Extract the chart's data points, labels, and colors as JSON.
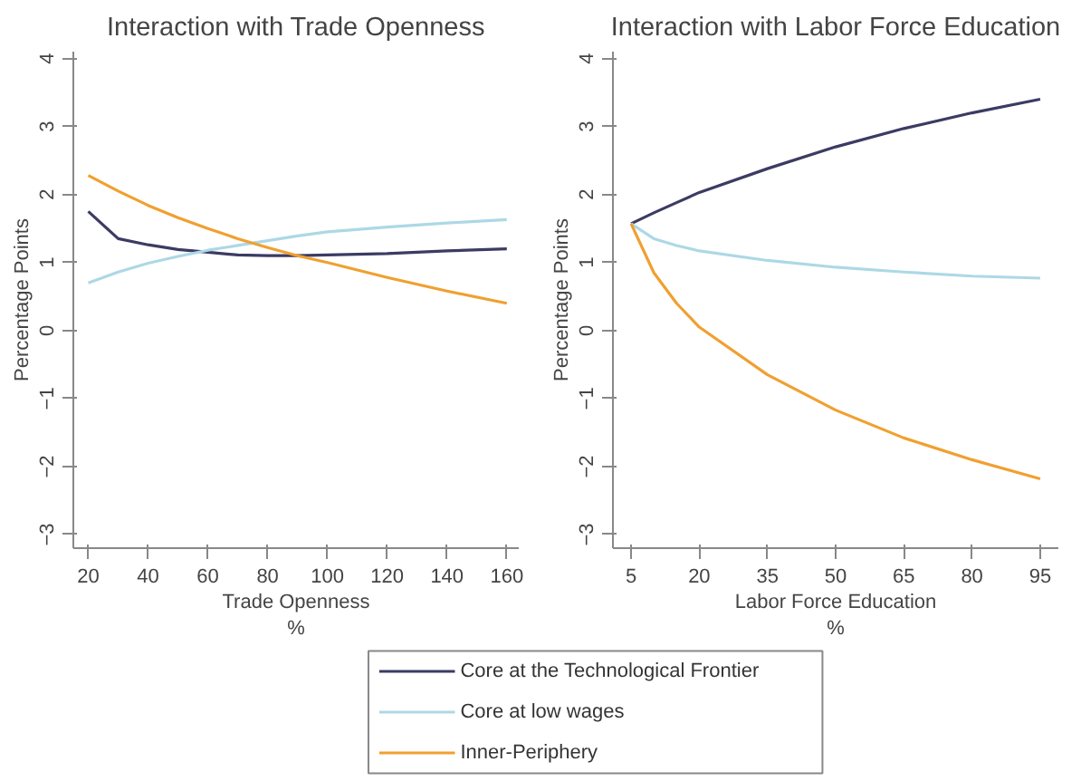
{
  "chart_data": [
    {
      "type": "line",
      "title": "Interaction with Trade Openness",
      "xlabel": "Trade Openness\n%",
      "ylabel": "Percentage Points",
      "x": [
        20,
        30,
        40,
        50,
        60,
        70,
        80,
        90,
        100,
        120,
        140,
        160
      ],
      "xlim": [
        15,
        164
      ],
      "xticks": [
        20,
        40,
        60,
        80,
        100,
        120,
        140,
        160
      ],
      "ylim": [
        -3.2,
        4.1
      ],
      "yticks": [
        -3,
        -2,
        -1,
        0,
        1,
        2,
        3,
        4
      ],
      "grid": false,
      "legend": "bottom",
      "line_style": "solid",
      "series": [
        {
          "name": "Core at the Technological Frontier",
          "color": "#3b3b63",
          "values": [
            1.75,
            1.35,
            1.26,
            1.19,
            1.15,
            1.11,
            1.1,
            1.1,
            1.11,
            1.13,
            1.17,
            1.2
          ]
        },
        {
          "name": "Core at low wages",
          "color": "#add8e6",
          "values": [
            0.7,
            0.86,
            0.99,
            1.09,
            1.18,
            1.25,
            1.32,
            1.39,
            1.45,
            1.52,
            1.58,
            1.63
          ]
        },
        {
          "name": "Inner-Periphery",
          "color": "#f0a030",
          "values": [
            2.28,
            2.05,
            1.84,
            1.66,
            1.5,
            1.35,
            1.22,
            1.1,
            1.0,
            0.78,
            0.58,
            0.4
          ]
        }
      ]
    },
    {
      "type": "line",
      "title": "Interaction with Labor Force Education",
      "xlabel": "Labor Force Education\n%",
      "ylabel": "Percentage Points",
      "x": [
        5,
        10,
        15,
        20,
        35,
        50,
        65,
        80,
        95
      ],
      "xlim": [
        1,
        99
      ],
      "xticks": [
        5,
        20,
        35,
        50,
        65,
        80,
        95
      ],
      "ylim": [
        -3.2,
        4.1
      ],
      "yticks": [
        -3,
        -2,
        -1,
        0,
        1,
        2,
        3,
        4
      ],
      "grid": false,
      "line_style": "solid",
      "series": [
        {
          "color": "#3b3b63",
          "values": [
            1.57,
            1.73,
            1.88,
            2.03,
            2.38,
            2.7,
            2.97,
            3.2,
            3.4
          ]
        },
        {
          "color": "#add8e6",
          "values": [
            1.57,
            1.35,
            1.25,
            1.17,
            1.03,
            0.93,
            0.86,
            0.8,
            0.77
          ]
        },
        {
          "color": "#f0a030",
          "values": [
            1.57,
            0.85,
            0.4,
            0.05,
            -0.65,
            -1.17,
            -1.58,
            -1.9,
            -2.18
          ]
        }
      ]
    }
  ]
}
